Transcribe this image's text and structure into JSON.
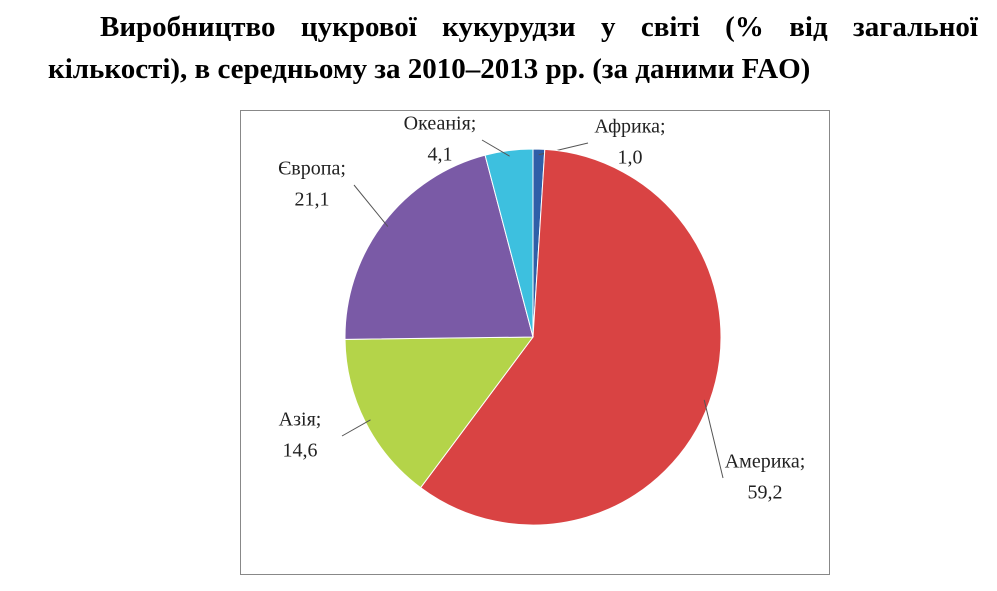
{
  "chart_data": {
    "type": "pie",
    "title": "Виробництво цукрової кукурудзи у світі (% від загальної кількості), в середньому за 2010–2013 рр. (за даними FAO)",
    "categories": [
      "Африка;",
      "Америка;",
      "Азія;",
      "Європа;",
      "Океанія;"
    ],
    "values": [
      1.0,
      59.2,
      14.6,
      21.1,
      4.1
    ],
    "value_labels": [
      "1,0",
      "59,2",
      "14,6",
      "21,1",
      "4,1"
    ],
    "colors": [
      "#2f5fa8",
      "#d94343",
      "#b4d449",
      "#7a5aa6",
      "#3dc0df"
    ]
  }
}
